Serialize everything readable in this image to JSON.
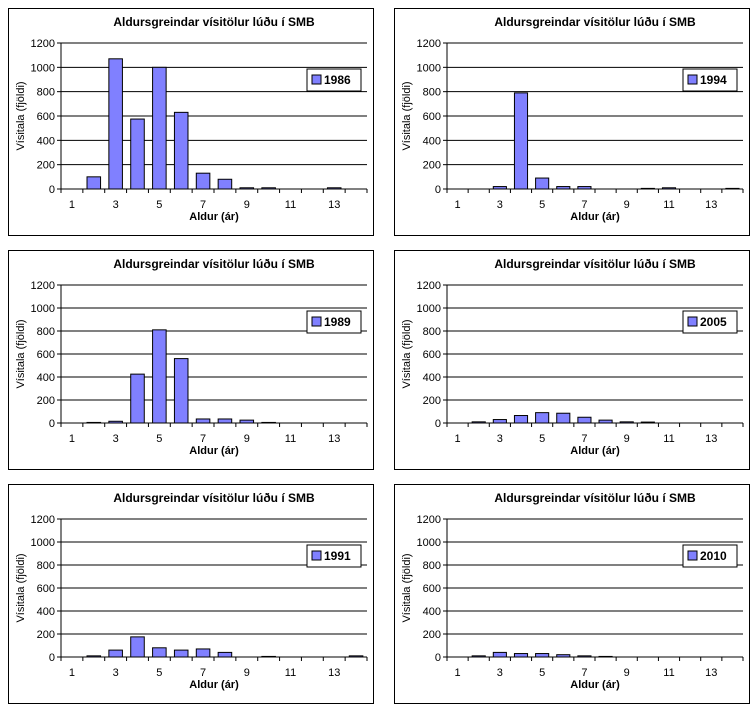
{
  "chart_data": [
    {
      "type": "bar",
      "title": "Aldursgreindar vísitölur lúðu í SMB",
      "xlabel": "Aldur (ár)",
      "ylabel": "Vísitala (fjöldi)",
      "ylim": [
        0,
        1200
      ],
      "yticks": [
        "0",
        "200",
        "400",
        "600",
        "800",
        "1000",
        "1200"
      ],
      "categories": [
        1,
        2,
        3,
        4,
        5,
        6,
        7,
        8,
        9,
        10,
        11,
        12,
        13,
        14
      ],
      "xticklabels": [
        "1",
        "3",
        "5",
        "7",
        "9",
        "11",
        "13"
      ],
      "series": [
        {
          "name": "1986",
          "values": [
            0,
            100,
            1070,
            575,
            1000,
            630,
            130,
            80,
            10,
            10,
            0,
            0,
            10,
            0
          ]
        }
      ],
      "grid": "horizontal",
      "legend": "right"
    },
    {
      "type": "bar",
      "title": "Aldursgreindar vísitölur lúðu í SMB",
      "xlabel": "Aldur (ár)",
      "ylabel": "Vísitala (fjöldi)",
      "ylim": [
        0,
        1200
      ],
      "yticks": [
        "0",
        "200",
        "400",
        "600",
        "800",
        "1000",
        "1200"
      ],
      "categories": [
        1,
        2,
        3,
        4,
        5,
        6,
        7,
        8,
        9,
        10,
        11,
        12,
        13,
        14
      ],
      "xticklabels": [
        "1",
        "3",
        "5",
        "7",
        "9",
        "11",
        "13"
      ],
      "series": [
        {
          "name": "1994",
          "values": [
            0,
            0,
            20,
            790,
            90,
            20,
            20,
            0,
            0,
            5,
            10,
            0,
            0,
            5
          ]
        }
      ],
      "grid": "horizontal",
      "legend": "right"
    },
    {
      "type": "bar",
      "title": "Aldursgreindar vísitölur lúðu í SMB",
      "xlabel": "Aldur (ár)",
      "ylabel": "Vísitala (fjöldi)",
      "ylim": [
        0,
        1200
      ],
      "yticks": [
        "0",
        "200",
        "400",
        "600",
        "800",
        "1000",
        "1200"
      ],
      "categories": [
        1,
        2,
        3,
        4,
        5,
        6,
        7,
        8,
        9,
        10,
        11,
        12,
        13,
        14
      ],
      "xticklabels": [
        "1",
        "3",
        "5",
        "7",
        "9",
        "11",
        "13"
      ],
      "series": [
        {
          "name": "1989",
          "values": [
            0,
            5,
            15,
            425,
            810,
            560,
            35,
            35,
            25,
            5,
            0,
            0,
            0,
            0
          ]
        }
      ],
      "grid": "horizontal",
      "legend": "right"
    },
    {
      "type": "bar",
      "title": "Aldursgreindar vísitölur lúðu í SMB",
      "xlabel": "Aldur (ár)",
      "ylabel": "Vísitala (fjöldi)",
      "ylim": [
        0,
        1200
      ],
      "yticks": [
        "0",
        "200",
        "400",
        "600",
        "800",
        "1000",
        "1200"
      ],
      "categories": [
        1,
        2,
        3,
        4,
        5,
        6,
        7,
        8,
        9,
        10,
        11,
        12,
        13,
        14
      ],
      "xticklabels": [
        "1",
        "3",
        "5",
        "7",
        "9",
        "11",
        "13"
      ],
      "series": [
        {
          "name": "2005",
          "values": [
            0,
            10,
            30,
            65,
            90,
            85,
            50,
            25,
            10,
            8,
            0,
            0,
            0,
            0
          ]
        }
      ],
      "grid": "horizontal",
      "legend": "right"
    },
    {
      "type": "bar",
      "title": "Aldursgreindar vísitölur lúðu í SMB",
      "xlabel": "Aldur (ár)",
      "ylabel": "Vísitala (fjöldi)",
      "ylim": [
        0,
        1200
      ],
      "yticks": [
        "0",
        "200",
        "400",
        "600",
        "800",
        "1000",
        "1200"
      ],
      "categories": [
        1,
        2,
        3,
        4,
        5,
        6,
        7,
        8,
        9,
        10,
        11,
        12,
        13,
        14
      ],
      "xticklabels": [
        "1",
        "3",
        "5",
        "7",
        "9",
        "11",
        "13"
      ],
      "series": [
        {
          "name": "1991",
          "values": [
            0,
            10,
            60,
            175,
            80,
            60,
            70,
            40,
            0,
            5,
            0,
            0,
            0,
            10
          ]
        }
      ],
      "grid": "horizontal",
      "legend": "right"
    },
    {
      "type": "bar",
      "title": "Aldursgreindar vísitölur lúðu í SMB",
      "xlabel": "Aldur (ár)",
      "ylabel": "Vísitala (fjöldi)",
      "ylim": [
        0,
        1200
      ],
      "yticks": [
        "0",
        "200",
        "400",
        "600",
        "800",
        "1000",
        "1200"
      ],
      "categories": [
        1,
        2,
        3,
        4,
        5,
        6,
        7,
        8,
        9,
        10,
        11,
        12,
        13,
        14
      ],
      "xticklabels": [
        "1",
        "3",
        "5",
        "7",
        "9",
        "11",
        "13"
      ],
      "series": [
        {
          "name": "2010",
          "values": [
            0,
            10,
            40,
            30,
            30,
            20,
            10,
            5,
            0,
            0,
            0,
            0,
            0,
            0
          ]
        }
      ],
      "grid": "horizontal",
      "legend": "right"
    }
  ],
  "colors": {
    "bar_fill": "#8080ff",
    "bar_stroke": "#000000",
    "grid": "#000000",
    "background": "#ffffff"
  }
}
